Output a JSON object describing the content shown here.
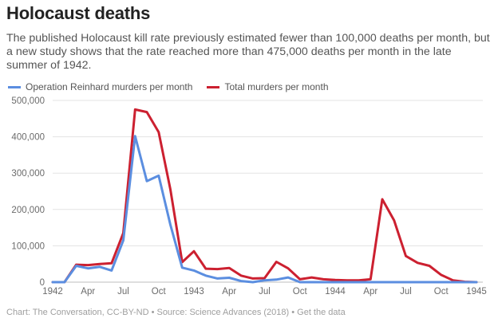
{
  "title": "Holocaust deaths",
  "subtitle": "The published Holocaust kill rate previously estimated fewer than 100,000 deaths per month, but a new study shows that the rate reached more than 475,000 deaths per month in the late summer of 1942.",
  "footer": "Chart: The Conversation, CC-BY-ND • Source: Science Advances (2018) • Get the data",
  "chart_data": {
    "type": "line",
    "title": "Holocaust deaths",
    "xlabel": "",
    "ylabel": "",
    "ylim": [
      0,
      500000
    ],
    "grid": true,
    "legend_position": "top-left",
    "y_ticks": [
      0,
      100000,
      200000,
      300000,
      400000,
      500000
    ],
    "y_tick_labels": [
      "0",
      "100,000",
      "200,000",
      "300,000",
      "400,000",
      "500,000"
    ],
    "x_ticks": [
      0,
      3,
      6,
      9,
      12,
      15,
      18,
      21,
      24,
      27,
      30,
      33,
      36
    ],
    "x_tick_labels": [
      "1942",
      "Apr",
      "Jul",
      "Oct",
      "1943",
      "Apr",
      "Jul",
      "Oct",
      "1944",
      "Apr",
      "Jul",
      "Oct",
      "1945"
    ],
    "x_note": "month index from Jan 1942 (0) to Jan 1945 (36)",
    "series": [
      {
        "name": "Operation Reinhard murders per month",
        "color": "#5b8ee0",
        "x": [
          0,
          1,
          2,
          3,
          4,
          5,
          6,
          7,
          8,
          9,
          10,
          11,
          12,
          13,
          14,
          15,
          16,
          17,
          18,
          19,
          20,
          21,
          22,
          23,
          24,
          36
        ],
        "values": [
          0,
          0,
          45000,
          38000,
          42000,
          32000,
          115000,
          402000,
          278000,
          293000,
          158000,
          40000,
          32000,
          18000,
          10000,
          12000,
          3000,
          0,
          5000,
          7000,
          13000,
          0,
          0,
          0,
          0,
          0
        ]
      },
      {
        "name": "Total murders per month",
        "color": "#cc2030",
        "x": [
          0,
          1,
          2,
          3,
          4,
          5,
          6,
          7,
          8,
          9,
          10,
          11,
          12,
          13,
          14,
          15,
          16,
          17,
          18,
          19,
          20,
          21,
          22,
          23,
          24,
          25,
          26,
          27,
          28,
          29,
          30,
          31,
          32,
          33,
          34,
          35,
          36
        ],
        "values": [
          0,
          0,
          48000,
          47000,
          50000,
          52000,
          135000,
          475000,
          468000,
          413000,
          255000,
          55000,
          85000,
          37000,
          36000,
          39000,
          18000,
          10000,
          11000,
          56000,
          38000,
          8000,
          13000,
          8000,
          6000,
          5000,
          5000,
          8000,
          228000,
          170000,
          72000,
          53000,
          45000,
          20000,
          5000,
          1000,
          0
        ]
      }
    ]
  }
}
